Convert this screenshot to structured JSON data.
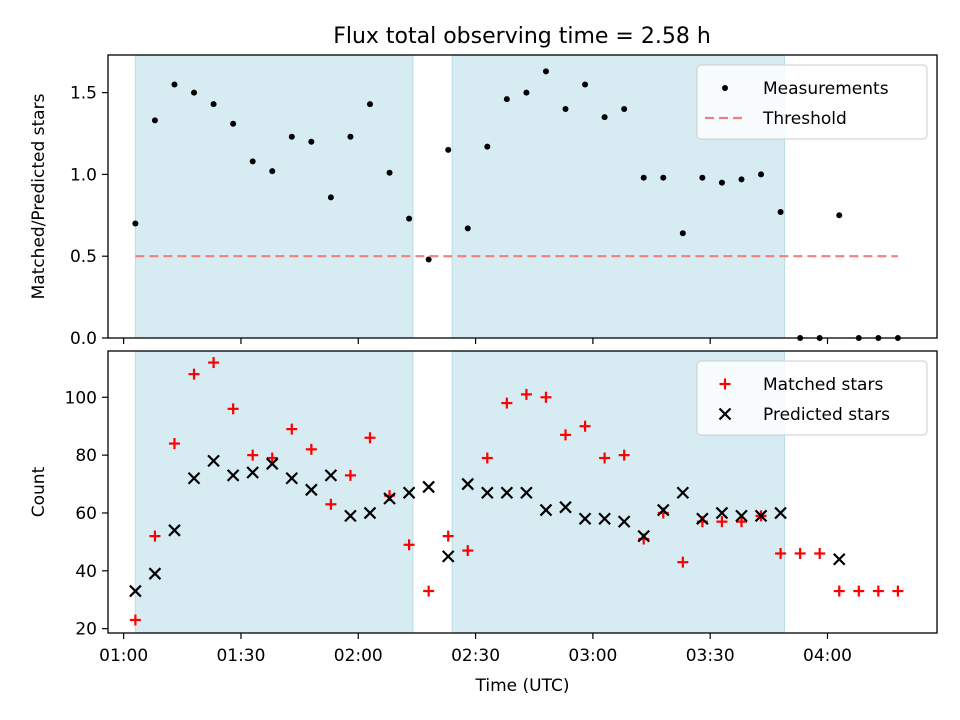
{
  "chart_data": [
    {
      "type": "scatter",
      "title": "Flux total observing time = 2.58 h",
      "xlabel": "",
      "ylabel": "Matched/Predicted stars",
      "xlim": [
        "00:56",
        "04:28"
      ],
      "ylim": [
        0,
        1.73
      ],
      "yticks": [
        0.0,
        0.5,
        1.0,
        1.5
      ],
      "ytick_labels": [
        "0.0",
        "0.5",
        "1.0",
        "1.5"
      ],
      "grid": false,
      "legend_placement": "upper right",
      "shaded_intervals": [
        [
          "01:03",
          "02:14"
        ],
        [
          "02:24",
          "03:49"
        ]
      ],
      "shade_color": "#add8e6",
      "series": [
        {
          "name": "Measurements",
          "marker": "dot",
          "color": "#000000",
          "x": [
            "01:03",
            "01:08",
            "01:13",
            "01:18",
            "01:23",
            "01:28",
            "01:33",
            "01:38",
            "01:43",
            "01:48",
            "01:53",
            "01:58",
            "02:03",
            "02:08",
            "02:13",
            "02:18",
            "02:23",
            "02:28",
            "02:33",
            "02:38",
            "02:43",
            "02:48",
            "02:53",
            "02:58",
            "03:03",
            "03:08",
            "03:13",
            "03:18",
            "03:23",
            "03:28",
            "03:33",
            "03:38",
            "03:43",
            "03:48",
            "03:53",
            "03:58",
            "04:03",
            "04:08",
            "04:13",
            "04:18"
          ],
          "y": [
            0.7,
            1.33,
            1.55,
            1.5,
            1.43,
            1.31,
            1.08,
            1.02,
            1.23,
            1.2,
            0.86,
            1.23,
            1.43,
            1.01,
            0.73,
            0.48,
            1.15,
            0.67,
            1.17,
            1.46,
            1.5,
            1.63,
            1.4,
            1.55,
            1.35,
            1.4,
            0.98,
            0.98,
            0.64,
            0.98,
            0.95,
            0.97,
            1.0,
            0.77,
            0.0,
            0.0,
            0.75,
            0.0,
            0.0,
            0.0
          ]
        },
        {
          "name": "Threshold",
          "marker": "dashed-line",
          "color": "#f08080",
          "x": [
            "01:03",
            "04:18"
          ],
          "y": [
            0.5,
            0.5
          ]
        }
      ]
    },
    {
      "type": "scatter",
      "title": "",
      "xlabel": "Time (UTC)",
      "ylabel": "Count",
      "xlim": [
        "00:56",
        "04:28"
      ],
      "ylim": [
        18.5,
        116
      ],
      "yticks": [
        20,
        40,
        60,
        80,
        100
      ],
      "ytick_labels": [
        "20",
        "40",
        "60",
        "80",
        "100"
      ],
      "xticks": [
        "01:00",
        "01:30",
        "02:00",
        "02:30",
        "03:00",
        "03:30",
        "04:00"
      ],
      "xtick_labels": [
        "01:00",
        "01:30",
        "02:00",
        "02:30",
        "03:00",
        "03:30",
        "04:00"
      ],
      "grid": false,
      "legend_placement": "upper right",
      "shaded_intervals": [
        [
          "01:03",
          "02:14"
        ],
        [
          "02:24",
          "03:49"
        ]
      ],
      "shade_color": "#add8e6",
      "series": [
        {
          "name": "Matched stars",
          "marker": "plus",
          "color": "#ff0000",
          "x": [
            "01:03",
            "01:08",
            "01:13",
            "01:18",
            "01:23",
            "01:28",
            "01:33",
            "01:38",
            "01:43",
            "01:48",
            "01:53",
            "01:58",
            "02:03",
            "02:08",
            "02:13",
            "02:18",
            "02:23",
            "02:28",
            "02:33",
            "02:38",
            "02:43",
            "02:48",
            "02:53",
            "02:58",
            "03:03",
            "03:08",
            "03:13",
            "03:18",
            "03:23",
            "03:28",
            "03:33",
            "03:38",
            "03:43",
            "03:48",
            "03:53",
            "03:58",
            "04:03",
            "04:08",
            "04:13",
            "04:18"
          ],
          "y": [
            23,
            52,
            84,
            108,
            112,
            96,
            80,
            79,
            89,
            82,
            63,
            73,
            86,
            66,
            49,
            33,
            52,
            47,
            79,
            98,
            101,
            100,
            87,
            90,
            79,
            80,
            51,
            60,
            43,
            57,
            57,
            57,
            59,
            46,
            46,
            46,
            33,
            33,
            33,
            33
          ]
        },
        {
          "name": "Predicted stars",
          "marker": "x",
          "color": "#000000",
          "x": [
            "01:03",
            "01:08",
            "01:13",
            "01:18",
            "01:23",
            "01:28",
            "01:33",
            "01:38",
            "01:43",
            "01:48",
            "01:53",
            "01:58",
            "02:03",
            "02:08",
            "02:13",
            "02:18",
            "02:23",
            "02:28",
            "02:33",
            "02:38",
            "02:43",
            "02:48",
            "02:53",
            "02:58",
            "03:03",
            "03:08",
            "03:13",
            "03:18",
            "03:23",
            "03:28",
            "03:33",
            "03:38",
            "03:43",
            "03:48",
            "04:03"
          ],
          "y": [
            33,
            39,
            54,
            72,
            78,
            73,
            74,
            77,
            72,
            68,
            73,
            59,
            60,
            65,
            67,
            69,
            45,
            70,
            67,
            67,
            67,
            61,
            62,
            58,
            58,
            57,
            52,
            61,
            67,
            58,
            60,
            59,
            59,
            60,
            44
          ]
        }
      ]
    }
  ]
}
